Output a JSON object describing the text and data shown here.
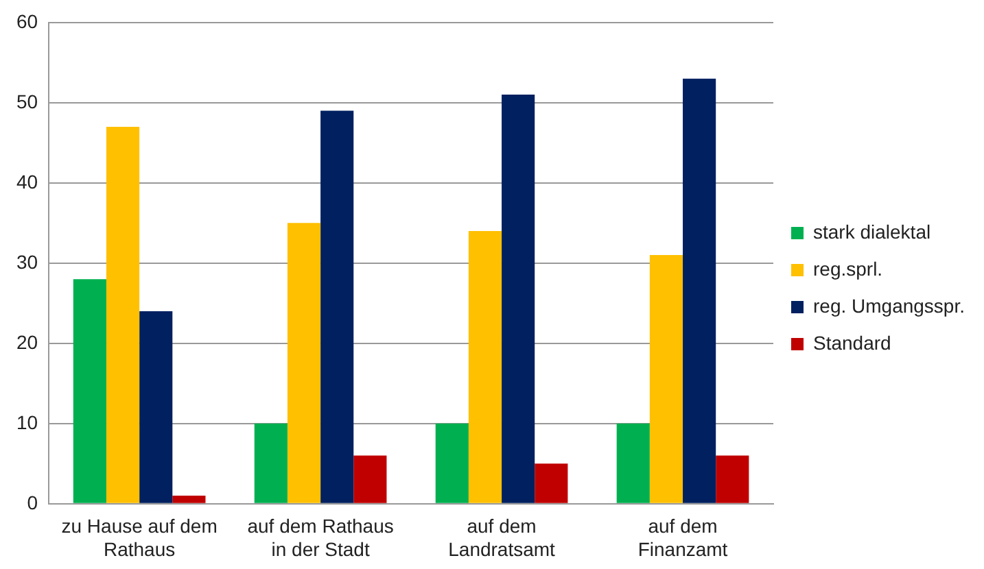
{
  "chart_data": {
    "type": "bar",
    "categories": [
      "zu Hause auf dem Rathaus",
      "auf dem Rathaus in der Stadt",
      "auf dem Landratsamt",
      "auf dem Finanzamt"
    ],
    "series": [
      {
        "name": "stark dialektal",
        "color": "#00b050",
        "values": [
          28,
          10,
          10,
          10
        ]
      },
      {
        "name": "reg.sprl.",
        "color": "#ffc000",
        "values": [
          47,
          35,
          34,
          31
        ]
      },
      {
        "name": "reg. Umgangsspr.",
        "color": "#002060",
        "values": [
          24,
          49,
          51,
          53
        ]
      },
      {
        "name": "Standard",
        "color": "#c00000",
        "values": [
          1,
          6,
          5,
          6
        ]
      }
    ],
    "ylim": [
      0,
      60
    ],
    "yticks": [
      0,
      10,
      20,
      30,
      40,
      50,
      60
    ],
    "grid": "y",
    "legend": "right"
  }
}
